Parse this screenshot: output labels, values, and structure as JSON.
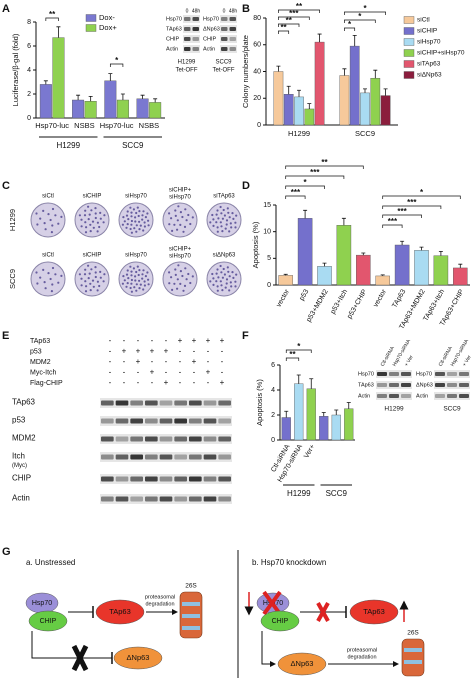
{
  "chart_data": [
    {
      "panel": "A",
      "type": "bar",
      "y_label": "Luciferase/β-gal (fold)",
      "categories": [
        "Hsp70-luc",
        "NSBS",
        "Hsp70-luc",
        "NSBS"
      ],
      "groups": [
        "H1299",
        "SCC9"
      ],
      "series": [
        {
          "name": "Dox-",
          "color": "#7a78d0",
          "values": [
            2.8,
            1.5,
            3.1,
            1.6
          ],
          "errors": [
            0.3,
            0.4,
            0.6,
            0.3
          ]
        },
        {
          "name": "Dox+",
          "color": "#8fd14f",
          "values": [
            6.7,
            1.4,
            1.5,
            1.3
          ],
          "errors": [
            0.9,
            0.4,
            0.5,
            0.3
          ]
        }
      ],
      "ylim": [
        0,
        8
      ],
      "yticks": [
        0,
        2,
        4,
        6,
        8
      ],
      "legend": "top",
      "annotations": [
        "**",
        "*"
      ],
      "insets": [
        {
          "columns": [
            "0",
            "48h"
          ],
          "rows": [
            "Hsp70",
            "TAp63",
            "CHIP",
            "Actin"
          ],
          "caption": [
            "H1299",
            "Tet-OFF"
          ]
        },
        {
          "columns": [
            "0",
            "48h"
          ],
          "rows": [
            "Hsp70",
            "ΔNp63",
            "CHIP",
            "Actin"
          ],
          "caption": [
            "SCC9",
            "Tet-OFF"
          ]
        }
      ]
    },
    {
      "panel": "B",
      "type": "bar",
      "y_label": "Colony numbers/plate",
      "categories": [
        "H1299",
        "SCC9"
      ],
      "series": [
        {
          "name": "siCtl",
          "color": "#f6c99b",
          "values": [
            40,
            37
          ],
          "errors": [
            4,
            5
          ]
        },
        {
          "name": "siCHIP",
          "color": "#7470cc",
          "values": [
            23,
            59
          ],
          "errors": [
            6,
            8
          ]
        },
        {
          "name": "siHsp70",
          "color": "#a9dbf2",
          "values": [
            21,
            24
          ],
          "errors": [
            5,
            3
          ]
        },
        {
          "name": "siCHIP+siHsp70",
          "color": "#8fd14f",
          "values": [
            12,
            35
          ],
          "errors": [
            4,
            6
          ]
        },
        {
          "name": "siTAp63",
          "color": "#e2566e",
          "values": [
            62,
            null
          ],
          "errors": [
            6,
            null
          ]
        },
        {
          "name": "siΔNp63",
          "color": "#8b1d3d",
          "values": [
            null,
            22
          ],
          "errors": [
            null,
            5
          ]
        }
      ],
      "ylim": [
        0,
        80
      ],
      "yticks": [
        0,
        20,
        40,
        60,
        80
      ],
      "legend": "right",
      "annotations": [
        "**",
        "***",
        "**",
        "**",
        "*",
        "*",
        "*"
      ]
    },
    {
      "panel": "D",
      "type": "bar",
      "y_label": "Apoptosis (%)",
      "categories": [
        "vector",
        "p53",
        "p53+MDM2",
        "p53+Itch",
        "p53+CHIP",
        "vector",
        "TAp63",
        "TAp63+MDM2",
        "TAp63+Itch",
        "TAp63+CHIP"
      ],
      "values": [
        1.8,
        12.5,
        3.5,
        11.2,
        5.6,
        1.7,
        7.5,
        6.5,
        5.5,
        3.2
      ],
      "errors": [
        0.2,
        1.5,
        0.6,
        1.3,
        0.4,
        0.2,
        0.7,
        0.6,
        0.8,
        0.7
      ],
      "colors": [
        "#f6c99b",
        "#7470cc",
        "#a9dbf2",
        "#8fd14f",
        "#e2566e",
        "#f6c99b",
        "#7470cc",
        "#a9dbf2",
        "#8fd14f",
        "#e2566e"
      ],
      "ylim": [
        0,
        15
      ],
      "yticks": [
        0,
        5,
        10,
        15
      ],
      "annotations": [
        "**",
        "***",
        "*",
        "***",
        "*",
        "***",
        "***",
        "***"
      ]
    },
    {
      "panel": "F",
      "type": "bar",
      "y_label": "Apoptosis (%)",
      "categories": [
        "Ctl-siRNA",
        "Hsp70-siRNA",
        "Ver+",
        null,
        null,
        null
      ],
      "groups": [
        "H1299",
        "SCC9"
      ],
      "values": [
        1.8,
        4.5,
        4.1,
        1.9,
        2.0,
        2.5
      ],
      "errors": [
        0.5,
        0.7,
        0.8,
        0.3,
        0.4,
        0.5
      ],
      "colors": [
        "#7470cc",
        "#a9dbf2",
        "#8fd14f",
        "#7470cc",
        "#a9dbf2",
        "#8fd14f"
      ],
      "ylim": [
        0,
        6
      ],
      "yticks": [
        0,
        2,
        4,
        6
      ],
      "annotations": [
        "*",
        "**"
      ],
      "insets": [
        {
          "columns": [
            "Ctl-siRNA",
            "Hsp70-siRNA",
            "+ Ver"
          ],
          "rows": [
            "Hsp70",
            "TAp63",
            "Actin"
          ],
          "caption": [
            "H1299"
          ]
        },
        {
          "columns": [
            "Ctl-siRNA",
            "Hsp70-siRNA",
            "+ Ver"
          ],
          "rows": [
            "Hsp70",
            "ΔNp63",
            "Actin"
          ],
          "caption": [
            "SCC9"
          ]
        }
      ]
    }
  ],
  "panel_c": {
    "label": "C",
    "rows": [
      {
        "name": "H1299",
        "plates": [
          "siCtl",
          "siCHIP",
          "siHsp70",
          [
            "siCHIP+",
            "siHsp70"
          ],
          "siTAp63"
        ]
      },
      {
        "name": "SCC9",
        "plates": [
          "siCtl",
          "siCHIP",
          "siHsp70",
          [
            "siCHIP+",
            "siHsp70"
          ],
          "siΔNp63"
        ]
      }
    ]
  },
  "panel_e": {
    "label": "E",
    "conditions": [
      {
        "name": "TAp63",
        "signs": [
          "-",
          "-",
          "-",
          "-",
          "-",
          "+",
          "+",
          "+",
          "+"
        ]
      },
      {
        "name": "p53",
        "signs": [
          "-",
          "+",
          "+",
          "+",
          "+",
          "-",
          "-",
          "-",
          "-"
        ]
      },
      {
        "name": "MDM2",
        "signs": [
          "-",
          "-",
          "+",
          "-",
          "-",
          "-",
          "+",
          "-",
          "-"
        ]
      },
      {
        "name": "Myc-Itch",
        "signs": [
          "-",
          "-",
          "-",
          "+",
          "-",
          "-",
          "-",
          "+",
          "-"
        ]
      },
      {
        "name": "Flag-CHIP",
        "signs": [
          "-",
          "-",
          "-",
          "-",
          "+",
          "-",
          "-",
          "-",
          "+"
        ]
      }
    ],
    "blots": [
      [
        "TAp63"
      ],
      [
        "p53"
      ],
      [
        "MDM2"
      ],
      [
        "Itch",
        "(Myc)"
      ],
      [
        "CHIP"
      ],
      [
        "Actin"
      ]
    ]
  },
  "panel_g": {
    "label": "G",
    "panels": [
      {
        "title": "a.   Unstressed",
        "nodes": [
          "Hsp70",
          "CHIP",
          "TAp63",
          "ΔNp63"
        ],
        "degradation": [
          "proteasomal",
          "degradation"
        ],
        "proteasome": "26S"
      },
      {
        "title": "b.   Hsp70 knockdown",
        "nodes": [
          "Hsp70",
          "CHIP",
          "TAp63",
          "ΔNp63"
        ],
        "degradation": [
          "proteasomal",
          "degradation"
        ],
        "proteasome": "26S"
      }
    ]
  }
}
